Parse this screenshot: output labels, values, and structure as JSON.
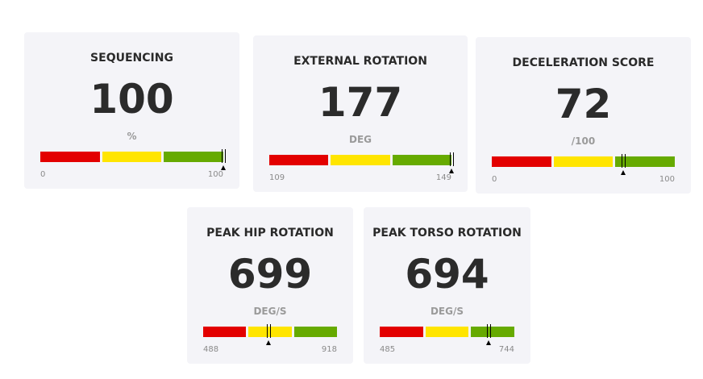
{
  "cards": [
    {
      "title": "SEQUENCING",
      "value": 100,
      "unit": "%",
      "min": 0,
      "max": 100
    },
    {
      "title": "EXTERNAL ROTATION",
      "value": 177,
      "unit": "DEG",
      "min": 109,
      "max": 149
    },
    {
      "title": "DECELERATION SCORE",
      "value": 72,
      "unit": "/100",
      "min": 0,
      "max": 100
    },
    {
      "title": "PEAK HIP ROTATION",
      "value": 699,
      "unit": "DEG/S",
      "min": 488,
      "max": 918
    },
    {
      "title": "PEAK TORSO ROTATION",
      "value": 694,
      "unit": "DEG/S",
      "min": 485,
      "max": 744
    }
  ]
}
